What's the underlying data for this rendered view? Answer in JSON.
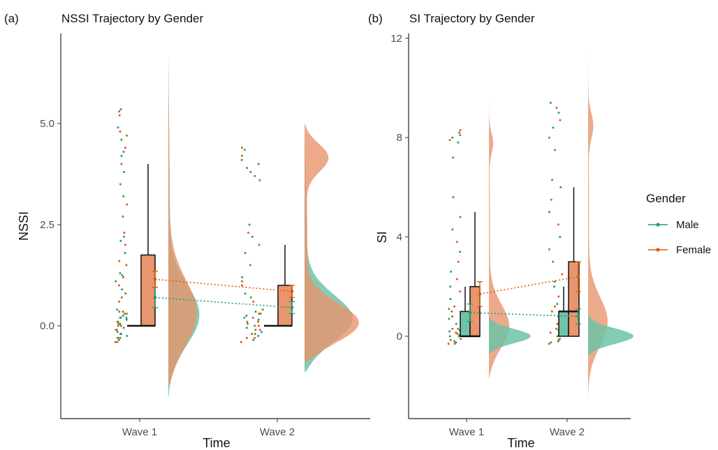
{
  "colors": {
    "male": "#1b9e77",
    "female": "#d95f02",
    "male_fill": "#6fc3a6",
    "female_fill": "#e9956d"
  },
  "legend": {
    "title": "Gender",
    "items": [
      {
        "label": "Male",
        "color": "#1b9e77"
      },
      {
        "label": "Female",
        "color": "#d95f02"
      }
    ]
  },
  "chart_data": [
    {
      "type": "raincloud",
      "panel_letter": "(a)",
      "title": "NSSI Trajectory by Gender",
      "xlabel": "Time",
      "ylabel": "NSSI",
      "categories": [
        "Wave 1",
        "Wave 2"
      ],
      "ylim": [
        -2.3,
        7.2
      ],
      "yticks": [
        0.0,
        2.5,
        5.0
      ],
      "ytick_labels": [
        "0.0",
        "2.5",
        "5.0"
      ],
      "series": [
        {
          "name": "Male",
          "means": [
            0.7,
            0.45
          ],
          "ci_low": [
            0.45,
            0.3
          ],
          "ci_high": [
            0.95,
            0.6
          ]
        },
        {
          "name": "Female",
          "means": [
            1.15,
            0.85
          ],
          "ci_low": [
            0.95,
            0.7
          ],
          "ci_high": [
            1.35,
            1.0
          ]
        }
      ],
      "boxplots": [
        {
          "group": "Female",
          "x": "Wave 1",
          "min": 0,
          "q1": 0,
          "median": 0,
          "q3": 1.75,
          "max": 4.0
        },
        {
          "group": "Female",
          "x": "Wave 2",
          "min": 0,
          "q1": 0,
          "median": 0,
          "q3": 1.0,
          "max": 2.0
        }
      ],
      "densities": [
        {
          "x": "Wave 1",
          "group": "Male",
          "lo": -1.8,
          "hi": 6.8,
          "modes": [
            [
              0.2,
              1.0,
              0.75
            ]
          ],
          "max_width": 50
        },
        {
          "x": "Wave 1",
          "group": "Female",
          "lo": -1.5,
          "hi": 6.8,
          "modes": [
            [
              0.2,
              1.0,
              0.85
            ]
          ],
          "max_width": 47
        },
        {
          "x": "Wave 2",
          "group": "Male",
          "lo": -1.15,
          "hi": 5.0,
          "modes": [
            [
              0.1,
              1.0,
              0.6
            ]
          ],
          "max_width": 80
        },
        {
          "x": "Wave 2",
          "group": "Female",
          "lo": -0.9,
          "hi": 5.0,
          "modes": [
            [
              0.0,
              1.0,
              0.5
            ],
            [
              4.2,
              0.45,
              0.35
            ]
          ],
          "max_width": 97
        }
      ],
      "jitter": [
        {
          "x": "Wave 1",
          "values": [
            -0.4,
            -0.35,
            -0.3,
            -0.25,
            -0.2,
            -0.15,
            -0.1,
            -0.05,
            0.0,
            0.05,
            0.1,
            0.15,
            0.2,
            0.25,
            0.3,
            0.35,
            -0.3,
            -0.2,
            -0.1,
            0.0,
            0.1,
            0.2,
            0.3,
            0.4,
            -0.4,
            -0.3,
            0.0,
            0.2,
            0.35,
            0.05,
            0.6,
            0.7,
            0.8,
            0.9,
            1.0,
            1.1,
            1.2,
            1.3,
            1.5,
            1.8,
            2.0,
            2.1,
            2.3,
            2.7,
            3.0,
            3.2,
            3.5,
            3.8,
            4.0,
            4.2,
            4.4,
            4.6,
            4.8,
            4.9,
            5.3,
            5.35,
            5.2,
            4.3,
            4.7,
            2.2,
            1.6,
            1.25
          ]
        },
        {
          "x": "Wave 2",
          "values": [
            -0.4,
            -0.35,
            -0.3,
            -0.25,
            -0.2,
            -0.15,
            -0.1,
            -0.05,
            0.0,
            0.05,
            0.1,
            0.15,
            0.2,
            0.25,
            0.3,
            0.35,
            -0.3,
            -0.2,
            -0.1,
            0.0,
            0.1,
            0.2,
            0.3,
            0.4,
            0.6,
            0.8,
            1.0,
            1.2,
            1.5,
            1.8,
            2.0,
            2.2,
            2.3,
            2.5,
            3.6,
            3.7,
            3.8,
            3.9,
            4.0,
            4.1,
            4.2,
            4.35,
            4.4,
            0.7,
            1.1
          ]
        }
      ]
    },
    {
      "type": "raincloud",
      "panel_letter": "(b)",
      "title": "SI Trajectory by Gender",
      "xlabel": "Time",
      "ylabel": "SI",
      "categories": [
        "Wave 1",
        "Wave 2"
      ],
      "ylim": [
        -4,
        12.2
      ],
      "yticks": [
        0,
        4,
        8,
        12
      ],
      "ytick_labels": [
        "0",
        "4",
        "8",
        "12"
      ],
      "series": [
        {
          "name": "Male",
          "means": [
            0.95,
            0.8
          ],
          "ci_low": [
            0.6,
            0.5
          ],
          "ci_high": [
            1.3,
            1.1
          ]
        },
        {
          "name": "Female",
          "means": [
            1.7,
            2.4
          ],
          "ci_low": [
            1.2,
            1.8
          ],
          "ci_high": [
            2.2,
            3.0
          ]
        }
      ],
      "boxplots": [
        {
          "group": "Male",
          "x": "Wave 1",
          "min": 0,
          "q1": 0,
          "median": 0,
          "q3": 1.0,
          "max": 2.0
        },
        {
          "group": "Female",
          "x": "Wave 1",
          "min": 0,
          "q1": 0,
          "median": 0,
          "q3": 2.0,
          "max": 5.0
        },
        {
          "group": "Male",
          "x": "Wave 2",
          "min": 0,
          "q1": 0,
          "median": 1.0,
          "q3": 1.0,
          "max": 2.0
        },
        {
          "group": "Female",
          "x": "Wave 2",
          "min": 0,
          "q1": 0,
          "median": 1.0,
          "q3": 3.0,
          "max": 6.0
        }
      ],
      "densities": [
        {
          "x": "Wave 1",
          "group": "Female",
          "lo": -1.7,
          "hi": 9.7,
          "modes": [
            [
              0.3,
              1.0,
              0.9
            ],
            [
              7.8,
              0.2,
              0.4
            ]
          ],
          "max_width": 35
        },
        {
          "x": "Wave 1",
          "group": "Male",
          "lo": -0.7,
          "hi": 0.8,
          "modes": [
            [
              0.0,
              1.0,
              0.3
            ]
          ],
          "max_width": 60
        },
        {
          "x": "Wave 2",
          "group": "Female",
          "lo": -2.6,
          "hi": 11.7,
          "modes": [
            [
              0.5,
              1.0,
              1.0
            ],
            [
              8.5,
              0.25,
              0.5
            ]
          ],
          "max_width": 32
        },
        {
          "x": "Wave 2",
          "group": "Male",
          "lo": -0.8,
          "hi": 0.9,
          "modes": [
            [
              0.0,
              1.0,
              0.32
            ]
          ],
          "max_width": 65
        }
      ],
      "jitter": [
        {
          "x": "Wave 1",
          "values": [
            -0.3,
            -0.2,
            -0.1,
            0.0,
            0.1,
            0.2,
            0.3,
            -0.25,
            -0.15,
            0.05,
            0.15,
            0.25,
            -0.3,
            0.0,
            0.3,
            0.5,
            0.8,
            1.0,
            1.2,
            1.5,
            1.8,
            2.0,
            2.3,
            2.6,
            3.0,
            3.4,
            3.8,
            4.3,
            4.8,
            5.6,
            7.2,
            7.8,
            7.9,
            8.0,
            8.1,
            8.2,
            8.3,
            0.7,
            1.1
          ]
        },
        {
          "x": "Wave 2",
          "values": [
            -0.3,
            -0.2,
            -0.1,
            0.0,
            0.1,
            0.2,
            0.3,
            -0.25,
            -0.15,
            0.05,
            0.15,
            0.25,
            0.5,
            0.8,
            1.0,
            1.3,
            1.6,
            2.0,
            2.5,
            3.0,
            3.5,
            4.0,
            4.5,
            5.0,
            5.5,
            6.0,
            6.3,
            7.5,
            8.0,
            8.4,
            8.7,
            9.0,
            9.2,
            9.4,
            1.2,
            2.2
          ]
        }
      ]
    }
  ]
}
